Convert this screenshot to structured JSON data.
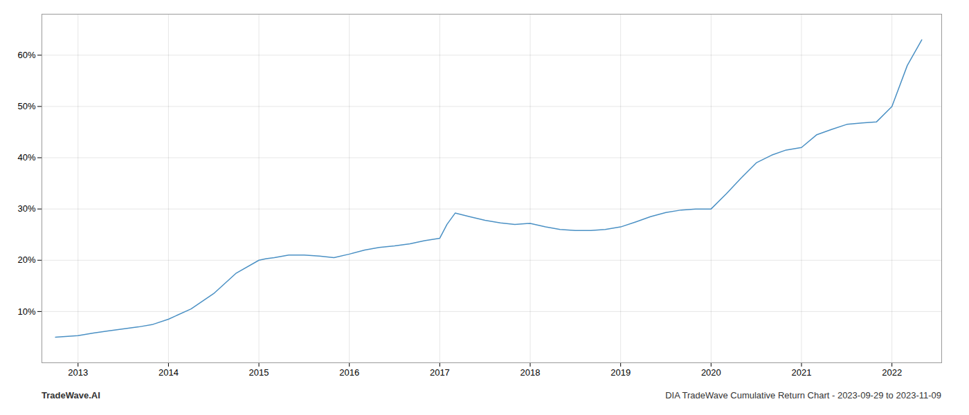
{
  "chart_data": {
    "type": "line",
    "x": [
      2012.75,
      2013.0,
      2013.17,
      2013.33,
      2013.5,
      2013.67,
      2013.83,
      2014.0,
      2014.25,
      2014.5,
      2014.75,
      2015.0,
      2015.08,
      2015.17,
      2015.33,
      2015.5,
      2015.67,
      2015.83,
      2016.0,
      2016.17,
      2016.33,
      2016.5,
      2016.67,
      2016.83,
      2017.0,
      2017.08,
      2017.17,
      2017.33,
      2017.5,
      2017.67,
      2017.83,
      2018.0,
      2018.17,
      2018.33,
      2018.5,
      2018.67,
      2018.83,
      2019.0,
      2019.17,
      2019.33,
      2019.5,
      2019.67,
      2019.83,
      2020.0,
      2020.17,
      2020.33,
      2020.5,
      2020.67,
      2020.83,
      2021.0,
      2021.17,
      2021.33,
      2021.5,
      2021.67,
      2021.83,
      2022.0,
      2022.17,
      2022.33
    ],
    "values": [
      5.0,
      5.3,
      5.8,
      6.2,
      6.6,
      7.0,
      7.5,
      8.5,
      10.5,
      13.5,
      17.5,
      20.0,
      20.3,
      20.5,
      21.0,
      21.0,
      20.8,
      20.5,
      21.2,
      22.0,
      22.5,
      22.8,
      23.2,
      23.8,
      24.3,
      27.0,
      29.2,
      28.5,
      27.8,
      27.3,
      27.0,
      27.2,
      26.5,
      26.0,
      25.8,
      25.8,
      26.0,
      26.5,
      27.5,
      28.5,
      29.3,
      29.8,
      30.0,
      30.0,
      33.0,
      36.0,
      39.0,
      40.5,
      41.5,
      42.0,
      44.5,
      45.5,
      46.5,
      46.8,
      47.0,
      50.0,
      58.0,
      63.0
    ],
    "color": "#4a90c4",
    "xlim": [
      2012.6,
      2022.55
    ],
    "ylim": [
      0,
      68
    ],
    "xticks": [
      2013,
      2014,
      2015,
      2016,
      2017,
      2018,
      2019,
      2020,
      2021,
      2022
    ],
    "yticks": [
      {
        "value": 10,
        "label": "10%"
      },
      {
        "value": 20,
        "label": "20%"
      },
      {
        "value": 30,
        "label": "30%"
      },
      {
        "value": 40,
        "label": "40%"
      },
      {
        "value": 50,
        "label": "50%"
      },
      {
        "value": 60,
        "label": "60%"
      }
    ],
    "grid": true,
    "annotations": [
      "TradeWave.AI",
      "DIA TradeWave Cumulative Return Chart - 2023-09-29 to 2023-11-09"
    ]
  }
}
